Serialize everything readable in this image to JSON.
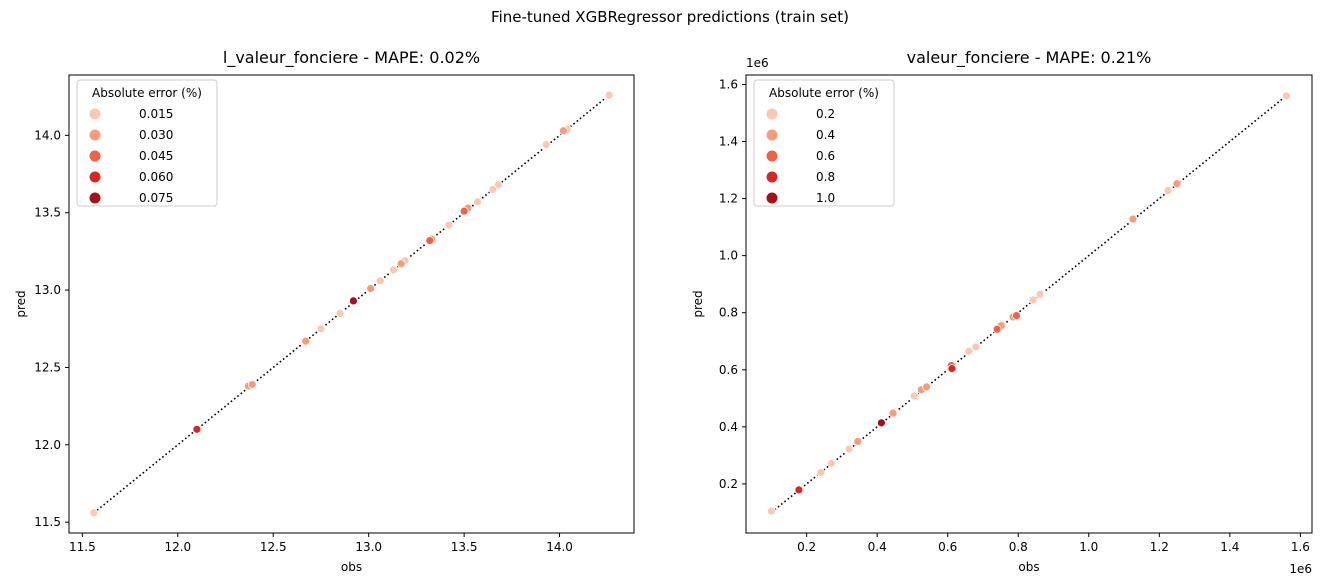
{
  "suptitle": "Fine-tuned XGBRegressor predictions (train set)",
  "chart_data": [
    {
      "type": "scatter",
      "title": "l_valeur_fonciere - MAPE: 0.02%",
      "xlabel": "obs",
      "ylabel": "pred",
      "xlim": [
        11.43,
        14.39
      ],
      "ylim": [
        11.43,
        14.39
      ],
      "x_ticks": [
        11.5,
        12.0,
        12.5,
        13.0,
        13.5,
        14.0
      ],
      "x_tick_labels": [
        "11.5",
        "12.0",
        "12.5",
        "13.0",
        "13.5",
        "14.0"
      ],
      "y_ticks": [
        11.5,
        12.0,
        12.5,
        13.0,
        13.5,
        14.0
      ],
      "y_tick_labels": [
        "11.5",
        "12.0",
        "12.5",
        "13.0",
        "13.5",
        "14.0"
      ],
      "legend": {
        "title": "Absolute error (%)",
        "placement": "upper-left",
        "entries": [
          {
            "label": "0.015",
            "color": "#fcc8b2"
          },
          {
            "label": "0.030",
            "color": "#fb9a7a"
          },
          {
            "label": "0.045",
            "color": "#f26145"
          },
          {
            "label": "0.060",
            "color": "#d92723"
          },
          {
            "label": "0.075",
            "color": "#a50f15"
          }
        ]
      },
      "reference_line": {
        "style": "dotted",
        "color": "#000000",
        "from": [
          11.56,
          11.56
        ],
        "to": [
          14.26,
          14.26
        ]
      },
      "points": [
        {
          "x": 11.56,
          "y": 11.56,
          "err": 0.003
        },
        {
          "x": 12.1,
          "y": 12.1,
          "err": 0.06
        },
        {
          "x": 12.37,
          "y": 12.38,
          "err": 0.025
        },
        {
          "x": 12.39,
          "y": 12.39,
          "err": 0.03
        },
        {
          "x": 12.67,
          "y": 12.67,
          "err": 0.028
        },
        {
          "x": 12.75,
          "y": 12.75,
          "err": 0.022
        },
        {
          "x": 12.85,
          "y": 12.85,
          "err": 0.01
        },
        {
          "x": 12.92,
          "y": 12.93,
          "err": 0.07
        },
        {
          "x": 13.01,
          "y": 13.01,
          "err": 0.035
        },
        {
          "x": 13.06,
          "y": 13.06,
          "err": 0.008
        },
        {
          "x": 13.13,
          "y": 13.13,
          "err": 0.012
        },
        {
          "x": 13.17,
          "y": 13.17,
          "err": 0.03
        },
        {
          "x": 13.19,
          "y": 13.19,
          "err": 0.02
        },
        {
          "x": 13.32,
          "y": 13.32,
          "err": 0.05
        },
        {
          "x": 13.33,
          "y": 13.33,
          "err": 0.025
        },
        {
          "x": 13.42,
          "y": 13.42,
          "err": 0.018
        },
        {
          "x": 13.5,
          "y": 13.51,
          "err": 0.045
        },
        {
          "x": 13.52,
          "y": 13.53,
          "err": 0.03
        },
        {
          "x": 13.57,
          "y": 13.57,
          "err": 0.012
        },
        {
          "x": 13.65,
          "y": 13.65,
          "err": 0.022
        },
        {
          "x": 13.68,
          "y": 13.68,
          "err": 0.015
        },
        {
          "x": 13.93,
          "y": 13.94,
          "err": 0.02
        },
        {
          "x": 14.02,
          "y": 14.03,
          "err": 0.028
        },
        {
          "x": 14.04,
          "y": 14.04,
          "err": 0.015
        },
        {
          "x": 14.26,
          "y": 14.26,
          "err": 0.01
        }
      ]
    },
    {
      "type": "scatter",
      "title": "valeur_fonciere - MAPE: 0.21%",
      "xlabel": "obs",
      "ylabel": "pred",
      "axis_multiplier": "1e6",
      "xlim": [
        28000,
        1633000
      ],
      "ylim": [
        28000,
        1633000
      ],
      "x_ticks": [
        200000,
        400000,
        600000,
        800000,
        1000000,
        1200000,
        1400000,
        1600000
      ],
      "x_tick_labels": [
        "0.2",
        "0.4",
        "0.6",
        "0.8",
        "1.0",
        "1.2",
        "1.4",
        "1.6"
      ],
      "y_ticks": [
        200000,
        400000,
        600000,
        800000,
        1000000,
        1200000,
        1400000,
        1600000
      ],
      "y_tick_labels": [
        "0.2",
        "0.4",
        "0.6",
        "0.8",
        "1.0",
        "1.2",
        "1.4",
        "1.6"
      ],
      "legend": {
        "title": "Absolute error (%)",
        "placement": "upper-left",
        "entries": [
          {
            "label": "0.2",
            "color": "#fcc8b2"
          },
          {
            "label": "0.4",
            "color": "#fb9a7a"
          },
          {
            "label": "0.6",
            "color": "#f26145"
          },
          {
            "label": "0.8",
            "color": "#d92723"
          },
          {
            "label": "1.0",
            "color": "#a50f15"
          }
        ]
      },
      "reference_line": {
        "style": "dotted",
        "color": "#000000",
        "from": [
          100000,
          100000
        ],
        "to": [
          1560000,
          1560000
        ]
      },
      "points": [
        {
          "x": 100000,
          "y": 105000,
          "err": 0.05
        },
        {
          "x": 178000,
          "y": 179000,
          "err": 0.8
        },
        {
          "x": 240000,
          "y": 240000,
          "err": 0.3
        },
        {
          "x": 270000,
          "y": 272000,
          "err": 0.2
        },
        {
          "x": 320000,
          "y": 322000,
          "err": 0.2
        },
        {
          "x": 345000,
          "y": 349000,
          "err": 0.4
        },
        {
          "x": 412000,
          "y": 414000,
          "err": 1.0
        },
        {
          "x": 445000,
          "y": 448000,
          "err": 0.5
        },
        {
          "x": 505000,
          "y": 508000,
          "err": 0.2
        },
        {
          "x": 525000,
          "y": 530000,
          "err": 0.4
        },
        {
          "x": 540000,
          "y": 540000,
          "err": 0.5
        },
        {
          "x": 610000,
          "y": 615000,
          "err": 0.6
        },
        {
          "x": 612000,
          "y": 604000,
          "err": 0.8
        },
        {
          "x": 660000,
          "y": 665000,
          "err": 0.2
        },
        {
          "x": 680000,
          "y": 680000,
          "err": 0.3
        },
        {
          "x": 740000,
          "y": 742000,
          "err": 0.6
        },
        {
          "x": 752000,
          "y": 755000,
          "err": 0.5
        },
        {
          "x": 785000,
          "y": 785000,
          "err": 0.4
        },
        {
          "x": 795000,
          "y": 790000,
          "err": 0.6
        },
        {
          "x": 842000,
          "y": 845000,
          "err": 0.2
        },
        {
          "x": 862000,
          "y": 865000,
          "err": 0.3
        },
        {
          "x": 1125000,
          "y": 1128000,
          "err": 0.4
        },
        {
          "x": 1225000,
          "y": 1228000,
          "err": 0.2
        },
        {
          "x": 1250000,
          "y": 1252000,
          "err": 0.4
        },
        {
          "x": 1560000,
          "y": 1560000,
          "err": 0.1
        }
      ]
    }
  ]
}
